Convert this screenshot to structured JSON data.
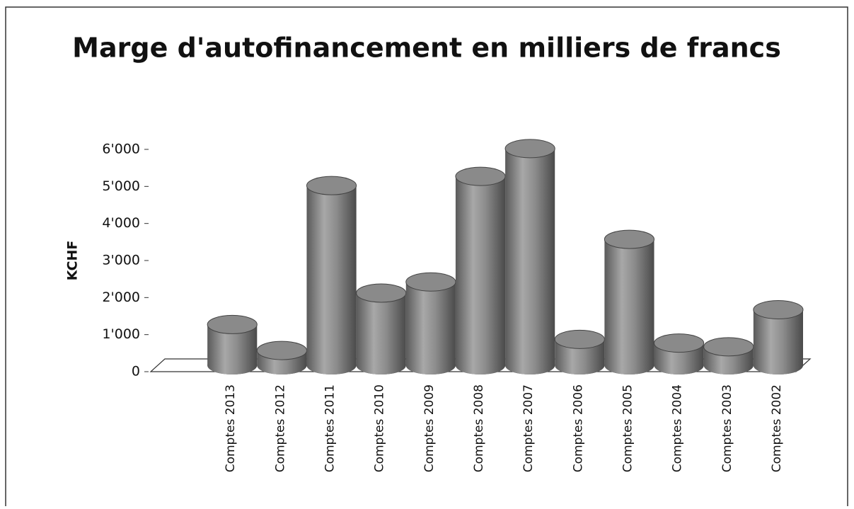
{
  "chart_data": {
    "type": "bar",
    "title": "Marge d'autofinancement en milliers de francs",
    "y_label": "KCHF",
    "categories": [
      null,
      "Comptes 2013",
      "Comptes 2012",
      "Comptes 2011",
      "Comptes 2010",
      "Comptes 2009",
      "Comptes 2008",
      "Comptes 2007",
      "Comptes 2006",
      "Comptes 2005",
      "Comptes 2004",
      "Comptes 2003",
      "Comptes 2002"
    ],
    "values": [
      null,
      1100,
      400,
      4850,
      1950,
      2250,
      5100,
      5850,
      700,
      3400,
      600,
      500,
      1500
    ],
    "color": "#8a8a8a",
    "ylim": [
      0,
      6000
    ],
    "yticks": [
      0,
      {
        "value": 1000,
        "label": "1'000"
      },
      {
        "value": 2000,
        "label": "2'000"
      },
      {
        "value": 3000,
        "label": "3'000"
      },
      {
        "value": 4000,
        "label": "4'000"
      },
      {
        "value": 5000,
        "label": "5'000"
      },
      {
        "value": 6000,
        "label": "6'000"
      }
    ],
    "grid": false
  }
}
